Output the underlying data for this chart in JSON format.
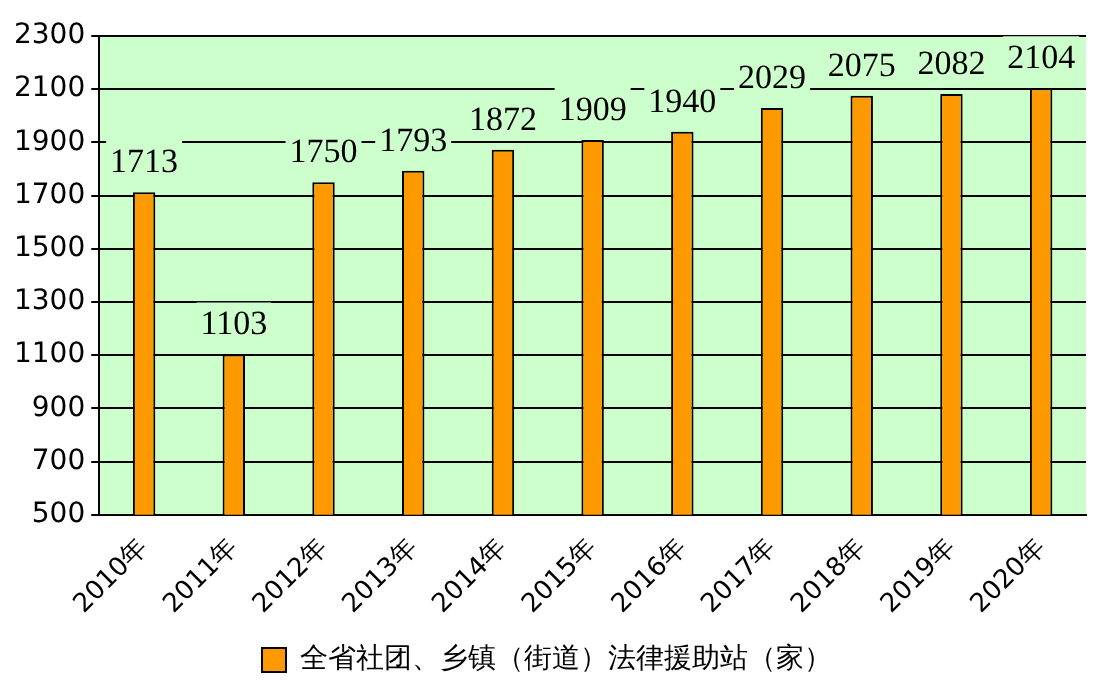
{
  "chart_data": {
    "type": "bar",
    "categories": [
      "2010年",
      "2011年",
      "2012年",
      "2013年",
      "2014年",
      "2015年",
      "2016年",
      "2017年",
      "2018年",
      "2019年",
      "2020年"
    ],
    "series": [
      {
        "name": "全省社团、乡镇（街道）法律援助站（家）",
        "color": "#ff9900",
        "values": [
          1713,
          1103,
          1750,
          1793,
          1872,
          1909,
          1940,
          2029,
          2075,
          2082,
          2104
        ]
      }
    ],
    "ylim": [
      500,
      2300
    ],
    "yticks": [
      500,
      700,
      900,
      1100,
      1300,
      1500,
      1700,
      1900,
      2100,
      2300
    ],
    "grid": "y",
    "legend": "bottom",
    "data_labels": true
  }
}
